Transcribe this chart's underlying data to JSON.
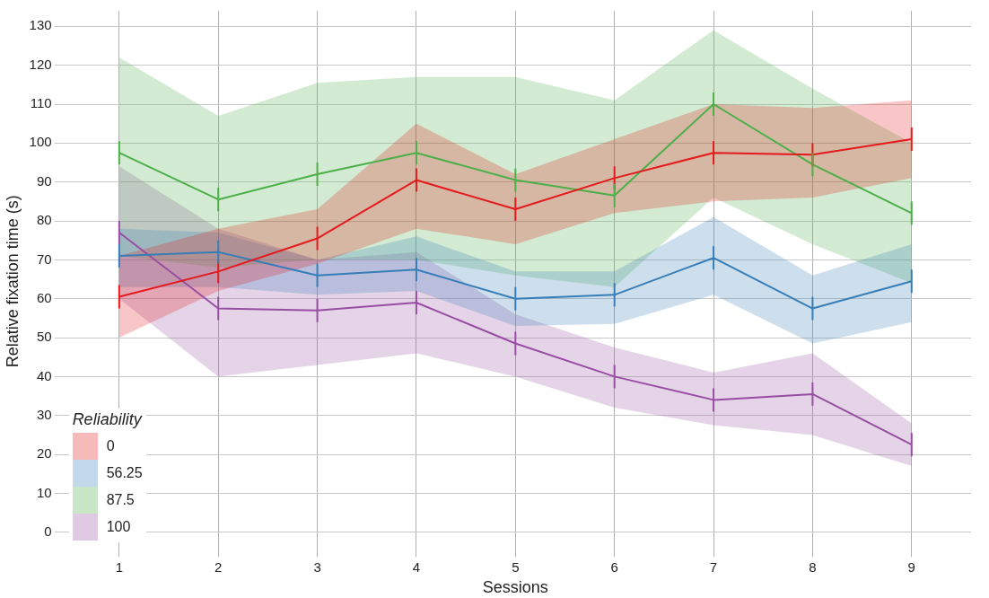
{
  "chart_data": {
    "type": "line",
    "xlabel": "Sessions",
    "ylabel": "Relative fixation time (s)",
    "legend_title": "Reliability",
    "legend": "bottom left",
    "grid": true,
    "marker": "none",
    "line_style": "solid",
    "x": [
      1,
      2,
      3,
      4,
      5,
      6,
      7,
      8,
      9
    ],
    "xlim": [
      0.4,
      9.6
    ],
    "xticks": [
      1,
      2,
      3,
      4,
      5,
      6,
      7,
      8,
      9
    ],
    "ylim": [
      -5,
      134
    ],
    "yticks": [
      0,
      10,
      20,
      30,
      40,
      50,
      60,
      70,
      80,
      90,
      100,
      110,
      120,
      130
    ],
    "series": [
      {
        "name": "0",
        "color": "#e41a1c",
        "values": [
          60.5,
          67,
          75.5,
          90.5,
          83,
          91,
          97.5,
          97,
          101
        ],
        "errors": [
          3,
          3,
          3,
          3,
          3,
          3,
          3,
          3,
          3
        ],
        "lower": [
          50,
          62,
          69,
          78,
          74,
          82,
          85,
          86,
          91
        ],
        "upper": [
          71,
          78,
          83,
          105,
          92,
          101,
          110,
          109,
          111
        ]
      },
      {
        "name": "56.25",
        "color": "#377eb8",
        "values": [
          71,
          72,
          66,
          67.5,
          60,
          61,
          70.5,
          57.5,
          64.5
        ],
        "errors": [
          3,
          3,
          3,
          3,
          3,
          3,
          3,
          3,
          3
        ],
        "lower": [
          63,
          63,
          61,
          62,
          53,
          53.5,
          61,
          48.5,
          54
        ],
        "upper": [
          78,
          77,
          70,
          76,
          67,
          67,
          81,
          66,
          74
        ]
      },
      {
        "name": "87.5",
        "color": "#4daf4a",
        "values": [
          97.5,
          85.5,
          92,
          97.5,
          90.5,
          86.5,
          110,
          94.5,
          82
        ],
        "errors": [
          3,
          3,
          3,
          3,
          3,
          3,
          3,
          3,
          3
        ],
        "lower": [
          71,
          68,
          70,
          70,
          66,
          63,
          86,
          74,
          64
        ],
        "upper": [
          122,
          107,
          115.5,
          117,
          117,
          111,
          129,
          114,
          100
        ]
      },
      {
        "name": "100",
        "color": "#984ea3",
        "values": [
          77,
          57.5,
          57,
          59,
          48.5,
          40,
          34,
          35.5,
          22.5
        ],
        "errors": [
          3,
          3,
          3,
          3,
          3,
          3,
          3,
          3,
          3
        ],
        "lower": [
          60,
          40,
          43,
          46,
          40,
          32,
          27.5,
          25,
          17
        ],
        "upper": [
          94,
          78,
          70,
          72,
          56,
          47.5,
          41,
          46,
          28
        ]
      }
    ]
  }
}
